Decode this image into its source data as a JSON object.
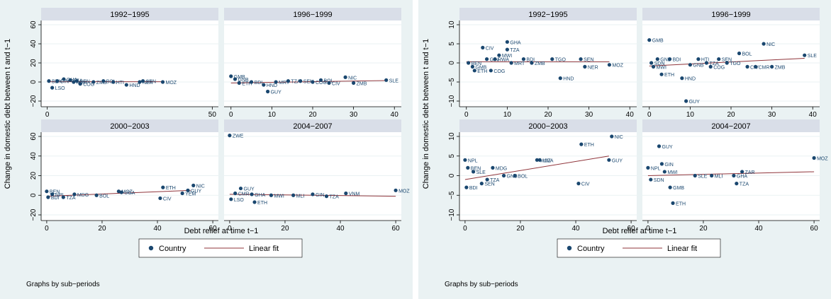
{
  "figures": [
    {
      "ylabel": "Change in domestic debt between t and t−1",
      "xlabel": "Debt relief at time t−1",
      "footnote": "Graphs by sub−periods",
      "legend": {
        "marker_label": "Country",
        "line_label": "Linear fit"
      }
    },
    {
      "ylabel": "Change in domestic debt between t and t−1",
      "xlabel": "Debt relief at time t−1",
      "footnote": "Graphs by sub−periods",
      "legend": {
        "marker_label": "Country",
        "line_label": "Linear fit"
      }
    }
  ],
  "colors": {
    "marker": "#1a476f",
    "fit": "#90353b",
    "strip": "#d9dee8",
    "outer_bg": "#eaf2f3",
    "grid": "#eaf2f3"
  },
  "chart_data": [
    {
      "type": "scatter",
      "title": "",
      "xlabel": "Debt relief at time t−1",
      "ylabel": "Change in domestic debt between t and t−1",
      "ylim": [
        -20,
        60
      ],
      "yticks": [
        -20,
        0,
        20,
        40,
        60
      ],
      "yticklabels": [
        "−20",
        "0",
        "20",
        "40",
        "60"
      ],
      "series": [
        {
          "name": "Country"
        },
        {
          "name": "Linear fit"
        }
      ],
      "panels": [
        {
          "title": "1992−1995",
          "xlim": [
            -1,
            51
          ],
          "xticks": [
            0,
            50
          ],
          "fit": [
            [
              0,
              0.3
            ],
            [
              35,
              0.3
            ]
          ],
          "points": [
            [
              0.5,
              1,
              "BEN"
            ],
            [
              1.5,
              -6,
              "LSO"
            ],
            [
              3,
              1,
              "GIN"
            ],
            [
              5,
              3,
              "GHA"
            ],
            [
              7,
              2,
              "TZA"
            ],
            [
              8,
              0,
              "MWI"
            ],
            [
              9,
              1,
              "SEN"
            ],
            [
              10,
              -2,
              "COG"
            ],
            [
              14,
              0,
              "ZMB"
            ],
            [
              17,
              1,
              "BOL"
            ],
            [
              20,
              0,
              "HTI"
            ],
            [
              24,
              -3,
              "HND"
            ],
            [
              28,
              0,
              "NER"
            ],
            [
              29,
              1,
              "SEN"
            ],
            [
              35,
              0,
              "MOZ"
            ]
          ]
        },
        {
          "title": "1996−1999",
          "xlim": [
            -1,
            41
          ],
          "xticks": [
            0,
            10,
            20,
            30,
            40
          ],
          "fit": [
            [
              0,
              -1
            ],
            [
              38,
              1.5
            ]
          ],
          "points": [
            [
              0,
              6,
              "GMB"
            ],
            [
              1,
              3,
              "GNB"
            ],
            [
              2,
              -1,
              "ETH"
            ],
            [
              5,
              0,
              "BDI"
            ],
            [
              8,
              -3,
              "HND"
            ],
            [
              9,
              -10,
              "GUY"
            ],
            [
              11,
              0,
              "MRT"
            ],
            [
              14,
              1,
              "TZA"
            ],
            [
              17,
              1,
              "SEN"
            ],
            [
              20,
              0,
              "COG"
            ],
            [
              22,
              2,
              "BOL"
            ],
            [
              24,
              -1,
              "CIV"
            ],
            [
              28,
              5,
              "NIC"
            ],
            [
              30,
              -1,
              "ZMB"
            ],
            [
              38,
              2,
              "SLE"
            ]
          ]
        },
        {
          "title": "2000−2003",
          "xlim": [
            -1,
            61
          ],
          "xticks": [
            0,
            20,
            40,
            60
          ],
          "fit": [
            [
              0,
              -1
            ],
            [
              52,
              5
            ]
          ],
          "points": [
            [
              0,
              4,
              "BEN"
            ],
            [
              0.5,
              -2,
              "BDI"
            ],
            [
              2,
              1,
              "NPL"
            ],
            [
              6,
              -2,
              "TZA"
            ],
            [
              10,
              1,
              "MDG"
            ],
            [
              18,
              0,
              "BOL"
            ],
            [
              26,
              4,
              "MOZ"
            ],
            [
              27,
              3,
              "UGA"
            ],
            [
              41,
              -3,
              "CIV"
            ],
            [
              42,
              8,
              "ETH"
            ],
            [
              49,
              2,
              "YEM"
            ],
            [
              51,
              5,
              "GUY"
            ],
            [
              53,
              10,
              "NIC"
            ]
          ]
        },
        {
          "title": "2004−2007",
          "xlim": [
            -1,
            61
          ],
          "xticks": [
            0,
            20,
            40,
            60
          ],
          "fit": [
            [
              0,
              1
            ],
            [
              60,
              -1
            ]
          ],
          "points": [
            [
              0,
              61,
              "ZWE"
            ],
            [
              0.5,
              -4,
              "LSO"
            ],
            [
              2,
              2,
              "CMR"
            ],
            [
              4,
              7,
              "GUY"
            ],
            [
              8,
              1,
              "GHA"
            ],
            [
              9,
              -7,
              "ETH"
            ],
            [
              15,
              0,
              "MWI"
            ],
            [
              23,
              0,
              "MLI"
            ],
            [
              30,
              1,
              "GIN"
            ],
            [
              35,
              -1,
              "TZA"
            ],
            [
              42,
              2,
              "VNM"
            ],
            [
              60,
              5,
              "MOZ"
            ]
          ]
        }
      ]
    },
    {
      "type": "scatter",
      "title": "",
      "xlabel": "Debt relief at time t−1",
      "ylabel": "Change in domestic debt between t and t−1",
      "ylim": [
        -10,
        10
      ],
      "yticks": [
        -10,
        -5,
        0,
        5,
        10
      ],
      "yticklabels": [
        "−10",
        "−5",
        "0",
        "5",
        "10"
      ],
      "series": [
        {
          "name": "Country"
        },
        {
          "name": "Linear fit"
        }
      ],
      "panels": [
        {
          "title": "1992−1995",
          "xlim": [
            -1,
            41
          ],
          "xticks": [
            0,
            10,
            20,
            30,
            40
          ],
          "fit": [
            [
              0,
              0.3
            ],
            [
              35,
              0.3
            ]
          ],
          "points": [
            [
              0.5,
              0,
              "BEN"
            ],
            [
              1.5,
              -1,
              "GMB"
            ],
            [
              2,
              -2,
              "ETH"
            ],
            [
              4,
              4,
              "CIV"
            ],
            [
              5,
              1,
              "GIN"
            ],
            [
              6,
              -2,
              "COG"
            ],
            [
              7,
              1,
              "RWA"
            ],
            [
              8,
              2,
              "MWI"
            ],
            [
              10,
              5.5,
              "GHA"
            ],
            [
              10,
              3.5,
              "TZA"
            ],
            [
              11,
              0,
              "MRT"
            ],
            [
              14,
              1,
              "BDI"
            ],
            [
              16,
              0,
              "ZMB"
            ],
            [
              21,
              1,
              "TGO"
            ],
            [
              23,
              -4,
              "HND"
            ],
            [
              28,
              1,
              "SEN"
            ],
            [
              29,
              -1,
              "NER"
            ],
            [
              35,
              -0.5,
              "MOZ"
            ]
          ]
        },
        {
          "title": "1996−1999",
          "xlim": [
            -1,
            41
          ],
          "xticks": [
            0,
            10,
            20,
            30,
            40
          ],
          "fit": [
            [
              0,
              -0.8
            ],
            [
              38,
              1.2
            ]
          ],
          "points": [
            [
              0,
              6,
              "GMB"
            ],
            [
              0.5,
              0,
              "SDN"
            ],
            [
              1,
              -1,
              "MWI"
            ],
            [
              2,
              1,
              "GNB"
            ],
            [
              3,
              -3,
              "ETH"
            ],
            [
              5,
              1,
              "BDI"
            ],
            [
              8,
              -4,
              "HND"
            ],
            [
              9,
              -10,
              "GUY"
            ],
            [
              10,
              -0.5,
              "GNB"
            ],
            [
              12,
              1,
              "HTI"
            ],
            [
              14,
              0,
              "TZA"
            ],
            [
              15,
              -1,
              "COG"
            ],
            [
              17,
              1,
              "SEN"
            ],
            [
              19,
              0,
              "TGO"
            ],
            [
              22,
              2.5,
              "BOL"
            ],
            [
              24,
              -1,
              "CIV"
            ],
            [
              26,
              -1,
              "CMR"
            ],
            [
              28,
              5,
              "NIC"
            ],
            [
              30,
              -1,
              "ZMB"
            ],
            [
              38,
              2,
              "SLE"
            ]
          ]
        },
        {
          "title": "2000−2003",
          "xlim": [
            -1,
            61
          ],
          "xticks": [
            0,
            20,
            40,
            60
          ],
          "fit": [
            [
              0,
              -1
            ],
            [
              52,
              5
            ]
          ],
          "points": [
            [
              0,
              4,
              "NPL"
            ],
            [
              0.5,
              -3,
              "BDI"
            ],
            [
              1,
              2,
              "BEN"
            ],
            [
              3,
              1,
              "SLE"
            ],
            [
              6,
              -2,
              "SEN"
            ],
            [
              8,
              -1,
              "TZA"
            ],
            [
              10,
              2,
              "MDG"
            ],
            [
              14,
              0,
              "GNB"
            ],
            [
              18,
              0,
              "BOL"
            ],
            [
              26,
              4,
              "MOZ"
            ],
            [
              27,
              4,
              "UGA"
            ],
            [
              41,
              -2,
              "CIV"
            ],
            [
              42,
              8,
              "ETH"
            ],
            [
              52,
              4,
              "GUY"
            ],
            [
              53,
              10,
              "NIC"
            ]
          ]
        },
        {
          "title": "2004−2007",
          "xlim": [
            -1,
            61
          ],
          "xticks": [
            0,
            20,
            40,
            60
          ],
          "fit": [
            [
              0,
              0
            ],
            [
              60,
              1
            ]
          ],
          "points": [
            [
              0,
              2,
              "NPL"
            ],
            [
              1,
              -1,
              "SDN"
            ],
            [
              4,
              7.5,
              "GUY"
            ],
            [
              5,
              3,
              "GIN"
            ],
            [
              6,
              1,
              "MWI"
            ],
            [
              8,
              -3,
              "GMB"
            ],
            [
              9,
              -7,
              "ETH"
            ],
            [
              17,
              0,
              "SLE"
            ],
            [
              23,
              0,
              "MLI"
            ],
            [
              31,
              0,
              "GHA"
            ],
            [
              32,
              -2,
              "TZA"
            ],
            [
              34,
              1,
              "ZAR"
            ],
            [
              60,
              4.5,
              "MOZ"
            ]
          ]
        }
      ]
    }
  ]
}
